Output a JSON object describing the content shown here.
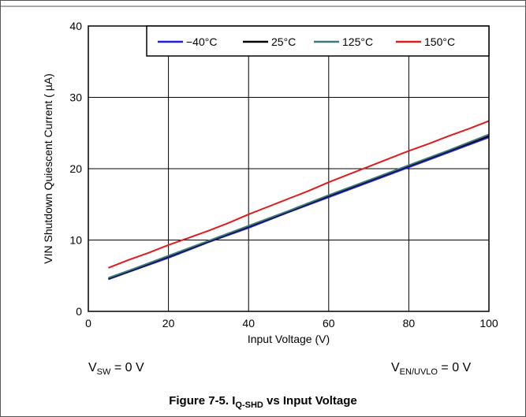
{
  "chart_data": {
    "type": "line",
    "xlabel": "Input Voltage (V)",
    "ylabel": "VIN Shutdown Quiescent Current ( µA)",
    "xlim": [
      0,
      100
    ],
    "ylim": [
      0,
      40
    ],
    "x_ticks": [
      "0",
      "20",
      "40",
      "60",
      "80",
      "100"
    ],
    "y_ticks": [
      "0",
      "10",
      "20",
      "30",
      "40"
    ],
    "grid": true,
    "legend_position": "top-right",
    "series": [
      {
        "name": "−40°C",
        "color": "#1f1fd6",
        "x": [
          5,
          10,
          20,
          30,
          40,
          50,
          60,
          70,
          80,
          90,
          100
        ],
        "y": [
          4.5,
          5.5,
          7.5,
          9.7,
          11.7,
          13.9,
          16.0,
          18.1,
          20.2,
          22.3,
          24.4
        ]
      },
      {
        "name": "25°C",
        "color": "#000000",
        "x": [
          5,
          10,
          20,
          30,
          40,
          50,
          60,
          70,
          80,
          90,
          100
        ],
        "y": [
          4.6,
          5.6,
          7.7,
          9.8,
          11.9,
          14.0,
          16.2,
          18.3,
          20.4,
          22.5,
          24.6
        ]
      },
      {
        "name": "125°C",
        "color": "#3b7a80",
        "x": [
          5,
          10,
          20,
          30,
          40,
          50,
          60,
          70,
          80,
          90,
          100
        ],
        "y": [
          4.7,
          5.7,
          7.8,
          9.9,
          12.0,
          14.1,
          16.3,
          18.4,
          20.5,
          22.6,
          24.8
        ]
      },
      {
        "name": "150°C",
        "color": "#e01b1b",
        "x": [
          5,
          10,
          15,
          20,
          25,
          30,
          35,
          40,
          45,
          50,
          55,
          60,
          65,
          70,
          75,
          80,
          85,
          90,
          95,
          100
        ],
        "y": [
          6.1,
          7.2,
          8.2,
          9.3,
          10.3,
          11.3,
          12.4,
          13.6,
          14.7,
          15.8,
          16.9,
          18.1,
          19.2,
          20.3,
          21.4,
          22.5,
          23.5,
          24.6,
          25.6,
          26.7
        ]
      }
    ]
  },
  "notes": {
    "vsw": {
      "main": "V",
      "sub": "SW",
      "rest": " = 0 V"
    },
    "ven": {
      "main": "V",
      "sub": "EN/UVLO",
      "rest": " = 0 V"
    }
  },
  "caption": {
    "prefix": "Figure 7-5. I",
    "sub": "Q-SHD",
    "suffix": " vs Input Voltage"
  }
}
